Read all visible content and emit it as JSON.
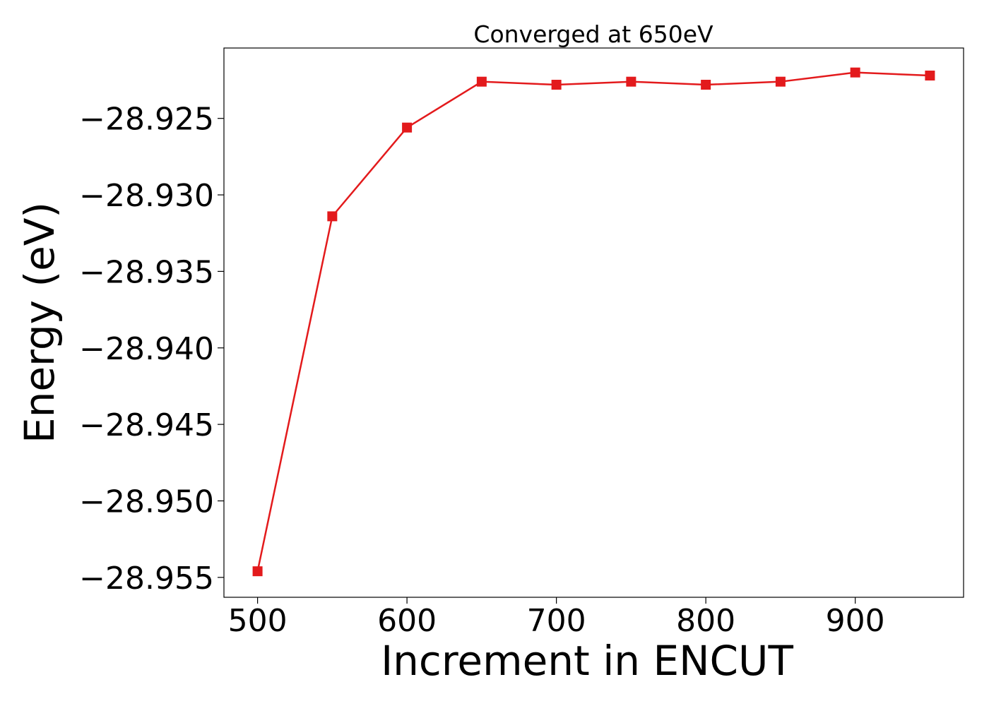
{
  "chart_data": {
    "type": "line",
    "title": "Converged at 650eV",
    "xlabel": "Increment in ENCUT",
    "ylabel": "Energy (eV)",
    "xlim": [
      477.5,
      972.5
    ],
    "ylim": [
      -28.9563,
      -28.9204
    ],
    "xticks": [
      500,
      600,
      700,
      800,
      900
    ],
    "xtick_labels": [
      "500",
      "600",
      "700",
      "800",
      "900"
    ],
    "yticks": [
      -28.955,
      -28.95,
      -28.945,
      -28.94,
      -28.935,
      -28.93,
      -28.925
    ],
    "ytick_labels": [
      "−28.955",
      "−28.950",
      "−28.945",
      "−28.940",
      "−28.935",
      "−28.930",
      "−28.925"
    ],
    "grid": false,
    "legend": "none",
    "series": [
      {
        "color": "#e31a1c",
        "marker": "square",
        "x": [
          500,
          550,
          600,
          650,
          700,
          750,
          800,
          850,
          900,
          950
        ],
        "y": [
          -28.9546,
          -28.9314,
          -28.9256,
          -28.9226,
          -28.9228,
          -28.9226,
          -28.9228,
          -28.9226,
          -28.922,
          -28.9222
        ]
      }
    ]
  }
}
